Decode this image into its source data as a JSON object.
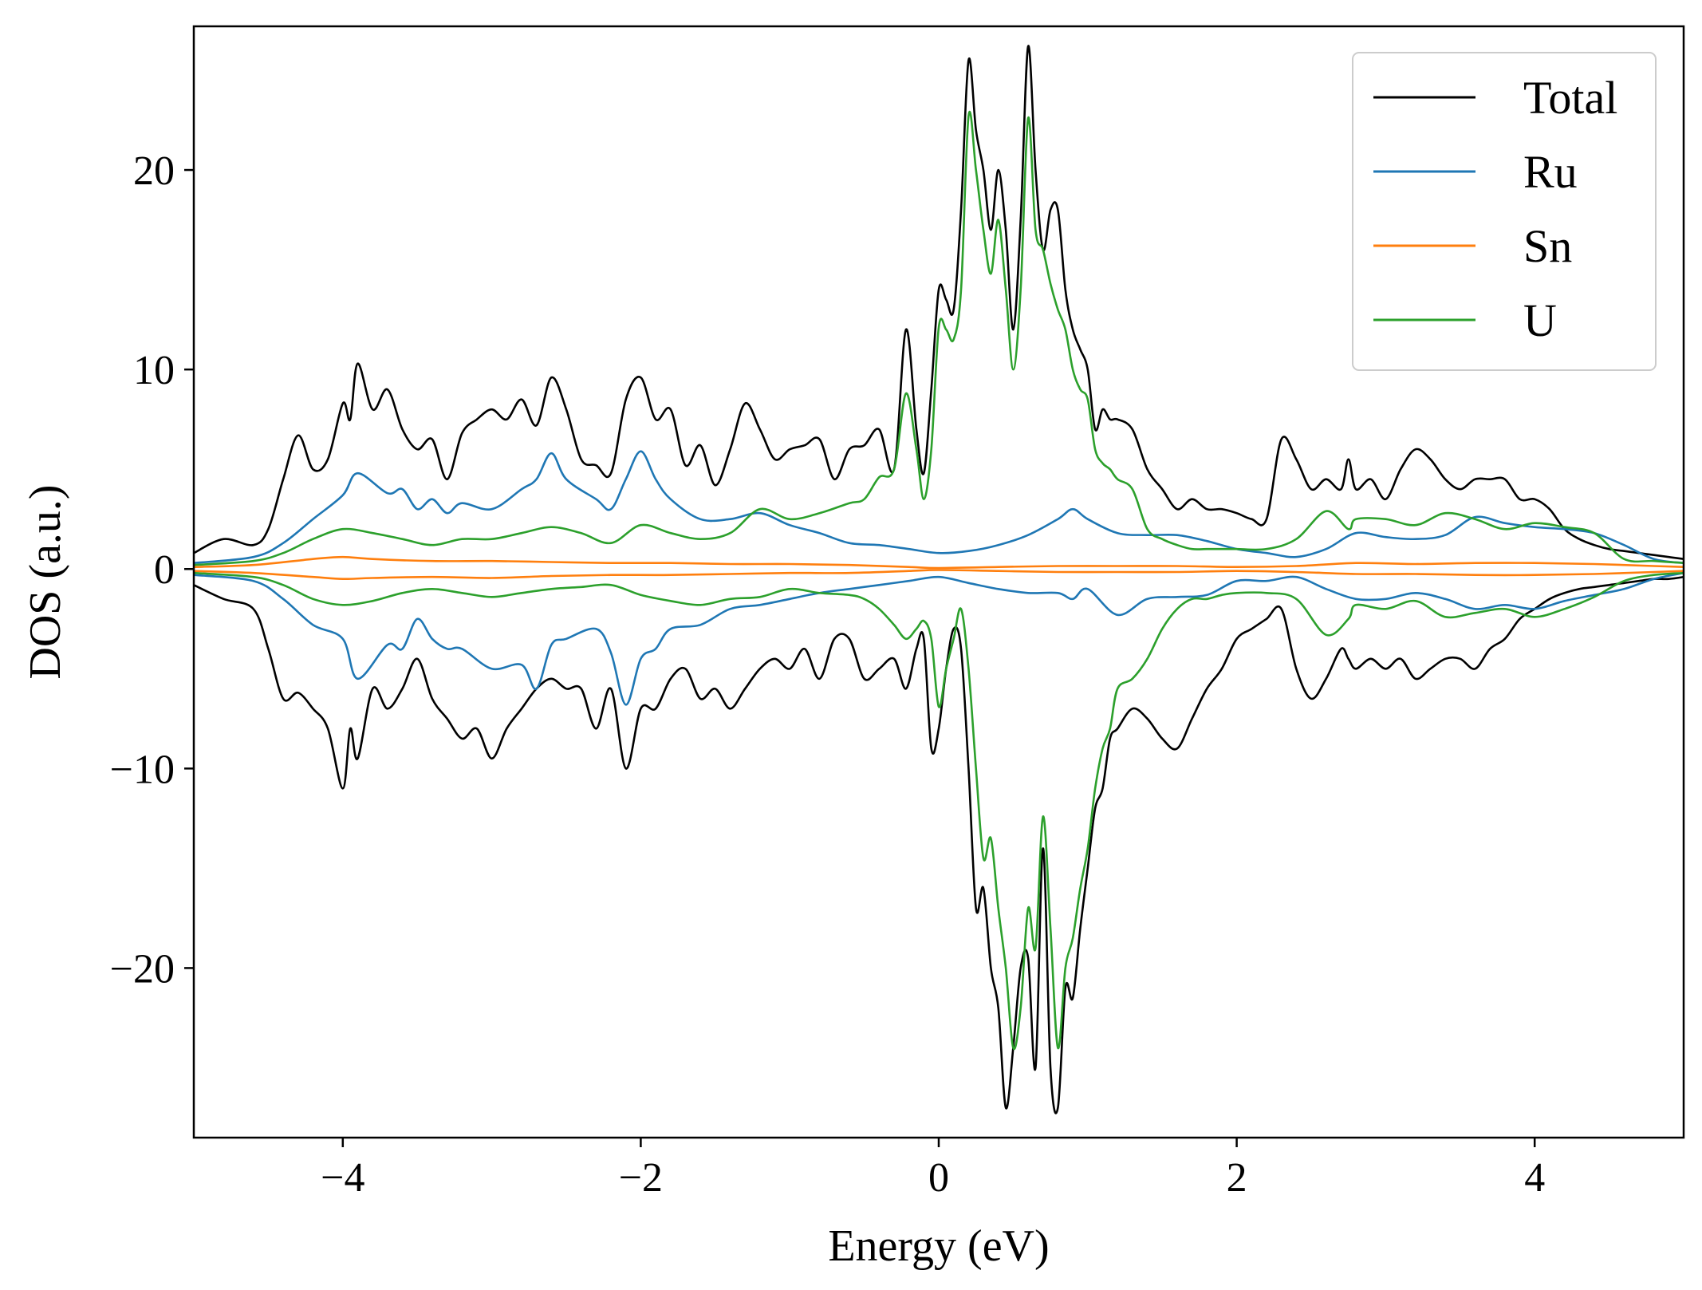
{
  "chart_data": {
    "type": "line",
    "title": "",
    "xlabel": "Energy (eV)",
    "ylabel": "DOS (a.u.)",
    "xlim": [
      -5,
      5
    ],
    "ylim": [
      -28.5,
      27.2
    ],
    "xticks": [
      -4,
      -2,
      0,
      2,
      4
    ],
    "xtick_labels": [
      "−4",
      "−2",
      "0",
      "2",
      "4"
    ],
    "yticks": [
      -20,
      -10,
      0,
      10,
      20
    ],
    "ytick_labels": [
      "−20",
      "−10",
      "0",
      "10",
      "20"
    ],
    "grid": false,
    "legend_position": "top-right",
    "series": [
      {
        "name": "Total",
        "color": "#000000",
        "x": [
          -5.0,
          -4.8,
          -4.6,
          -4.5,
          -4.4,
          -4.3,
          -4.2,
          -4.1,
          -4.0,
          -3.95,
          -3.9,
          -3.8,
          -3.7,
          -3.6,
          -3.5,
          -3.4,
          -3.3,
          -3.2,
          -3.1,
          -3.0,
          -2.9,
          -2.8,
          -2.7,
          -2.6,
          -2.5,
          -2.4,
          -2.3,
          -2.2,
          -2.1,
          -2.0,
          -1.9,
          -1.8,
          -1.7,
          -1.6,
          -1.5,
          -1.4,
          -1.3,
          -1.2,
          -1.1,
          -1.0,
          -0.9,
          -0.8,
          -0.7,
          -0.6,
          -0.5,
          -0.4,
          -0.3,
          -0.22,
          -0.15,
          -0.1,
          -0.05,
          0.0,
          0.05,
          0.1,
          0.15,
          0.2,
          0.25,
          0.3,
          0.35,
          0.4,
          0.45,
          0.5,
          0.55,
          0.6,
          0.65,
          0.7,
          0.75,
          0.8,
          0.85,
          0.9,
          0.95,
          1.0,
          1.05,
          1.1,
          1.15,
          1.2,
          1.3,
          1.4,
          1.5,
          1.6,
          1.7,
          1.8,
          1.9,
          2.0,
          2.1,
          2.2,
          2.3,
          2.4,
          2.5,
          2.6,
          2.7,
          2.75,
          2.8,
          2.9,
          3.0,
          3.1,
          3.2,
          3.3,
          3.4,
          3.5,
          3.6,
          3.7,
          3.8,
          3.9,
          4.0,
          4.1,
          4.2,
          4.3,
          4.4,
          4.5,
          4.6,
          4.7,
          4.8,
          4.9,
          5.0
        ],
        "up": [
          0.8,
          1.5,
          1.2,
          2.0,
          4.5,
          6.7,
          5.0,
          5.5,
          8.3,
          7.5,
          10.3,
          8.0,
          9.0,
          7.0,
          6.0,
          6.5,
          4.5,
          6.8,
          7.5,
          8.0,
          7.5,
          8.5,
          7.2,
          9.6,
          8.0,
          5.5,
          5.2,
          4.8,
          8.5,
          9.6,
          7.5,
          8.0,
          5.2,
          6.2,
          4.2,
          6.0,
          8.3,
          7.0,
          5.5,
          6.0,
          6.2,
          6.5,
          4.5,
          6.0,
          6.2,
          7.0,
          5.0,
          12.0,
          7.0,
          4.8,
          9.0,
          14.0,
          13.5,
          13.0,
          18.0,
          25.5,
          22.0,
          20.0,
          17.0,
          20.0,
          17.0,
          12.0,
          17.5,
          26.2,
          20.0,
          16.0,
          18.0,
          18.0,
          14.0,
          12.0,
          11.0,
          10.0,
          7.0,
          8.0,
          7.5,
          7.5,
          7.0,
          5.0,
          4.0,
          3.0,
          3.5,
          3.0,
          3.0,
          2.8,
          2.5,
          2.5,
          6.5,
          5.5,
          4.0,
          4.5,
          4.0,
          5.5,
          4.0,
          4.5,
          3.5,
          5.0,
          6.0,
          5.5,
          4.5,
          4.0,
          4.5,
          4.5,
          4.5,
          3.5,
          3.5,
          3.0,
          2.0,
          1.5,
          1.2,
          1.0,
          0.9,
          0.8,
          0.7,
          0.6,
          0.5
        ],
        "down": [
          -0.8,
          -1.5,
          -2.0,
          -4.0,
          -6.5,
          -6.2,
          -7.0,
          -8.0,
          -11.0,
          -8.0,
          -9.5,
          -6.0,
          -7.0,
          -6.0,
          -4.5,
          -6.5,
          -7.5,
          -8.5,
          -8.0,
          -9.5,
          -8.0,
          -7.0,
          -6.0,
          -5.5,
          -6.0,
          -6.0,
          -8.0,
          -6.0,
          -10.0,
          -7.0,
          -7.0,
          -5.5,
          -5.0,
          -6.5,
          -6.0,
          -7.0,
          -6.0,
          -5.0,
          -4.5,
          -5.0,
          -4.0,
          -5.5,
          -3.5,
          -3.5,
          -5.5,
          -5.0,
          -4.5,
          -6.0,
          -4.0,
          -3.5,
          -9.0,
          -8.0,
          -5.0,
          -3.0,
          -4.0,
          -10.0,
          -17.0,
          -16.0,
          -20.0,
          -22.0,
          -27.0,
          -24.0,
          -20.0,
          -19.5,
          -25.0,
          -14.0,
          -25.0,
          -27.0,
          -21.0,
          -21.5,
          -18.0,
          -15.0,
          -12.0,
          -11.0,
          -8.5,
          -8.0,
          -7.0,
          -7.5,
          -8.5,
          -9.0,
          -7.5,
          -6.0,
          -5.0,
          -3.5,
          -3.0,
          -2.5,
          -2.0,
          -5.0,
          -6.5,
          -5.5,
          -4.0,
          -4.5,
          -5.0,
          -4.5,
          -5.0,
          -4.5,
          -5.5,
          -5.0,
          -4.5,
          -4.5,
          -5.0,
          -4.0,
          -3.5,
          -2.5,
          -2.0,
          -1.5,
          -1.2,
          -1.0,
          -0.9,
          -0.8,
          -0.7,
          -0.6,
          -0.5,
          -0.5,
          -0.4
        ]
      },
      {
        "name": "Ru",
        "color": "#1f77b4",
        "x": [
          -5.0,
          -4.6,
          -4.4,
          -4.2,
          -4.0,
          -3.9,
          -3.7,
          -3.6,
          -3.5,
          -3.4,
          -3.3,
          -3.2,
          -3.0,
          -2.8,
          -2.7,
          -2.6,
          -2.5,
          -2.3,
          -2.2,
          -2.1,
          -2.0,
          -1.9,
          -1.8,
          -1.6,
          -1.4,
          -1.2,
          -1.0,
          -0.8,
          -0.6,
          -0.4,
          -0.2,
          0.0,
          0.2,
          0.4,
          0.6,
          0.8,
          0.9,
          1.0,
          1.2,
          1.4,
          1.6,
          1.8,
          2.0,
          2.2,
          2.4,
          2.6,
          2.8,
          3.0,
          3.2,
          3.4,
          3.6,
          3.8,
          4.0,
          4.2,
          4.4,
          4.6,
          4.8,
          5.0
        ],
        "up": [
          0.3,
          0.6,
          1.3,
          2.5,
          3.7,
          4.8,
          3.8,
          4.0,
          3.0,
          3.5,
          2.8,
          3.3,
          3.0,
          4.0,
          4.5,
          5.8,
          4.5,
          3.5,
          3.0,
          4.5,
          5.9,
          4.5,
          3.5,
          2.5,
          2.5,
          2.8,
          2.2,
          1.8,
          1.3,
          1.2,
          1.0,
          0.8,
          0.9,
          1.2,
          1.7,
          2.5,
          3.0,
          2.5,
          1.8,
          1.7,
          1.7,
          1.4,
          1.0,
          0.8,
          0.6,
          1.0,
          1.8,
          1.6,
          1.5,
          1.7,
          2.6,
          2.3,
          2.1,
          2.0,
          1.8,
          1.2,
          0.5,
          0.3
        ],
        "down": [
          -0.3,
          -0.6,
          -1.5,
          -2.8,
          -3.5,
          -5.5,
          -3.8,
          -4.0,
          -2.5,
          -3.5,
          -4.0,
          -4.0,
          -5.0,
          -4.8,
          -6.0,
          -3.8,
          -3.5,
          -3.0,
          -4.2,
          -6.8,
          -4.5,
          -4.0,
          -3.0,
          -2.8,
          -2.0,
          -1.8,
          -1.5,
          -1.2,
          -1.0,
          -0.8,
          -0.6,
          -0.4,
          -0.7,
          -1.0,
          -1.2,
          -1.2,
          -1.5,
          -1.0,
          -2.3,
          -1.5,
          -1.4,
          -1.3,
          -0.6,
          -0.6,
          -0.4,
          -1.0,
          -1.5,
          -1.5,
          -1.2,
          -1.5,
          -2.0,
          -1.8,
          -2.0,
          -1.6,
          -1.3,
          -1.0,
          -0.5,
          -0.2
        ]
      },
      {
        "name": "Sn",
        "color": "#ff7f0e",
        "x": [
          -5.0,
          -4.6,
          -4.2,
          -4.0,
          -3.8,
          -3.4,
          -3.0,
          -2.6,
          -2.2,
          -1.8,
          -1.4,
          -1.0,
          -0.6,
          -0.2,
          0.0,
          0.4,
          0.8,
          1.2,
          1.6,
          2.0,
          2.4,
          2.8,
          3.2,
          3.6,
          4.0,
          4.4,
          4.8,
          5.0
        ],
        "up": [
          0.1,
          0.2,
          0.5,
          0.6,
          0.5,
          0.4,
          0.4,
          0.35,
          0.3,
          0.3,
          0.25,
          0.25,
          0.2,
          0.1,
          0.05,
          0.1,
          0.15,
          0.15,
          0.15,
          0.1,
          0.15,
          0.3,
          0.25,
          0.3,
          0.3,
          0.25,
          0.15,
          0.1
        ],
        "down": [
          -0.1,
          -0.2,
          -0.4,
          -0.5,
          -0.45,
          -0.4,
          -0.45,
          -0.35,
          -0.3,
          -0.3,
          -0.25,
          -0.2,
          -0.2,
          -0.1,
          -0.05,
          -0.1,
          -0.15,
          -0.15,
          -0.15,
          -0.1,
          -0.15,
          -0.25,
          -0.25,
          -0.3,
          -0.3,
          -0.25,
          -0.15,
          -0.1
        ]
      },
      {
        "name": "U",
        "color": "#2ca02c",
        "x": [
          -5.0,
          -4.6,
          -4.4,
          -4.2,
          -4.0,
          -3.8,
          -3.6,
          -3.4,
          -3.2,
          -3.0,
          -2.8,
          -2.6,
          -2.4,
          -2.2,
          -2.0,
          -1.8,
          -1.6,
          -1.4,
          -1.2,
          -1.0,
          -0.8,
          -0.6,
          -0.5,
          -0.4,
          -0.3,
          -0.22,
          -0.15,
          -0.1,
          -0.05,
          0.0,
          0.05,
          0.1,
          0.15,
          0.2,
          0.25,
          0.3,
          0.35,
          0.4,
          0.45,
          0.5,
          0.55,
          0.6,
          0.65,
          0.7,
          0.75,
          0.8,
          0.85,
          0.9,
          0.95,
          1.0,
          1.05,
          1.1,
          1.15,
          1.2,
          1.3,
          1.4,
          1.5,
          1.6,
          1.7,
          1.8,
          1.9,
          2.0,
          2.2,
          2.4,
          2.6,
          2.75,
          2.8,
          3.0,
          3.2,
          3.4,
          3.6,
          3.8,
          4.0,
          4.2,
          4.4,
          4.6,
          4.8,
          5.0
        ],
        "up": [
          0.2,
          0.4,
          0.8,
          1.5,
          2.0,
          1.8,
          1.5,
          1.2,
          1.5,
          1.5,
          1.8,
          2.1,
          1.8,
          1.3,
          2.2,
          1.8,
          1.5,
          1.8,
          3.0,
          2.5,
          2.8,
          3.3,
          3.5,
          4.6,
          5.0,
          8.8,
          6.0,
          3.5,
          6.0,
          12.1,
          12.0,
          11.5,
          14.0,
          22.7,
          20.0,
          17.0,
          14.8,
          17.5,
          14.0,
          10.0,
          14.0,
          22.6,
          17.0,
          16.0,
          14.3,
          13.0,
          12.0,
          10.0,
          9.0,
          8.5,
          6.0,
          5.3,
          5.0,
          4.5,
          4.0,
          2.0,
          1.5,
          1.2,
          1.0,
          1.0,
          1.0,
          1.0,
          1.0,
          1.5,
          2.9,
          2.0,
          2.5,
          2.5,
          2.2,
          2.8,
          2.5,
          2.0,
          2.3,
          2.1,
          1.8,
          0.5,
          0.4,
          0.3
        ],
        "down": [
          -0.2,
          -0.4,
          -0.8,
          -1.5,
          -1.8,
          -1.6,
          -1.2,
          -1.0,
          -1.2,
          -1.4,
          -1.2,
          -1.0,
          -0.9,
          -0.8,
          -1.3,
          -1.6,
          -1.8,
          -1.5,
          -1.4,
          -1.0,
          -1.2,
          -1.3,
          -1.5,
          -2.0,
          -2.8,
          -3.5,
          -3.0,
          -2.6,
          -3.5,
          -6.9,
          -5.0,
          -3.5,
          -2.0,
          -5.0,
          -10.0,
          -14.5,
          -13.5,
          -17.0,
          -20.0,
          -24.0,
          -22.0,
          -17.0,
          -19.0,
          -12.4,
          -18.0,
          -24.0,
          -20.0,
          -18.5,
          -16.0,
          -14.0,
          -11.0,
          -9.0,
          -8.0,
          -6.0,
          -5.5,
          -4.5,
          -3.0,
          -2.0,
          -1.5,
          -1.5,
          -1.3,
          -1.2,
          -1.2,
          -1.5,
          -3.3,
          -2.5,
          -1.8,
          -2.0,
          -1.6,
          -2.4,
          -2.2,
          -2.0,
          -2.4,
          -2.0,
          -1.4,
          -0.6,
          -0.3,
          -0.2
        ]
      }
    ]
  }
}
